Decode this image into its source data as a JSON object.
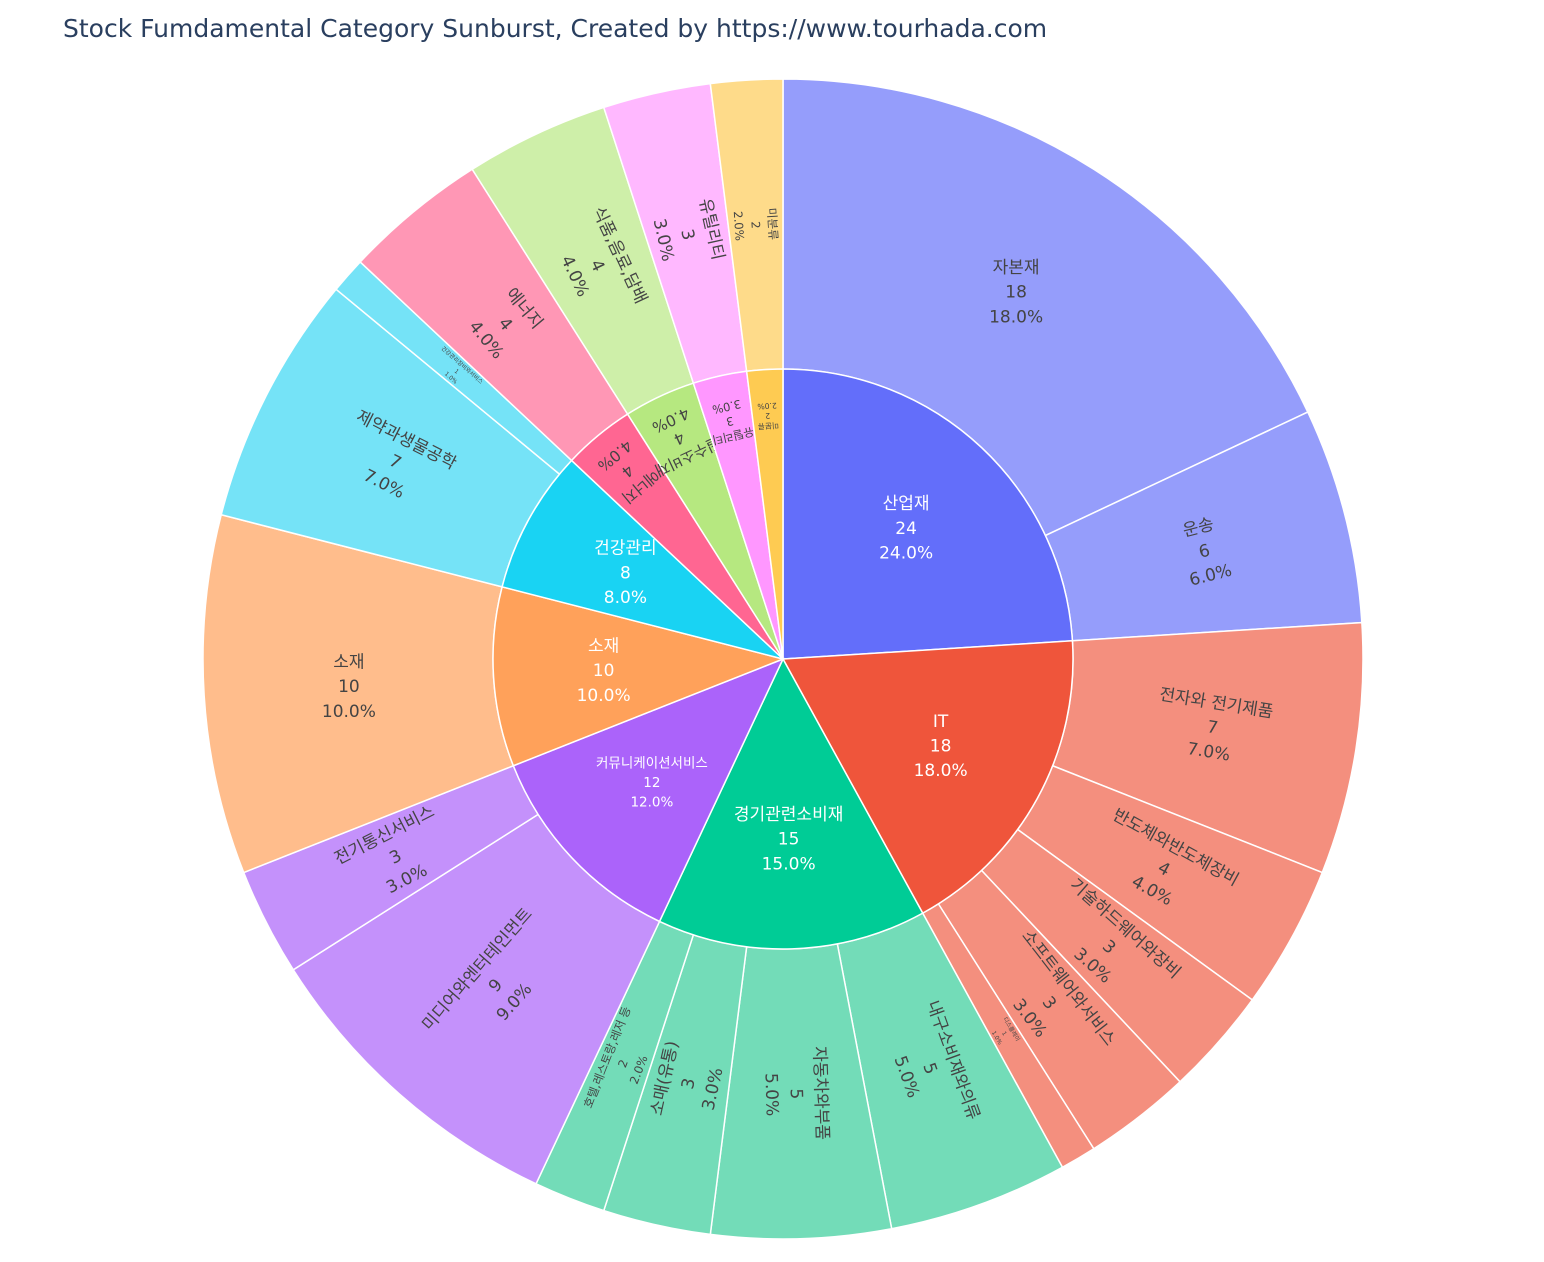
{
  "chart_data": {
    "type": "sunburst",
    "title": "Stock Fumdamental Category Sunburst, Created by https://www.tourhada.com",
    "total": 100,
    "sectors": [
      {
        "name": "산업재",
        "value": 24,
        "percent": "24.0%",
        "color": "#636efa",
        "child_color": "#959dfb",
        "children": [
          {
            "name": "자본재",
            "value": 18,
            "percent": "18.0%"
          },
          {
            "name": "운송",
            "value": 6,
            "percent": "6.0%"
          }
        ]
      },
      {
        "name": "IT",
        "value": 18,
        "percent": "18.0%",
        "color": "#ef553b",
        "child_color": "#f48f7e",
        "children": [
          {
            "name": "전자와 전기제품",
            "value": 7,
            "percent": "7.0%"
          },
          {
            "name": "반도체와반도체장비",
            "value": 4,
            "percent": "4.0%"
          },
          {
            "name": "기술하드웨어와장비",
            "value": 3,
            "percent": "3.0%"
          },
          {
            "name": "소프트웨어와서비스",
            "value": 3,
            "percent": "3.0%"
          },
          {
            "name": "디스플레이",
            "value": 1,
            "percent": "1.0%"
          }
        ]
      },
      {
        "name": "경기관련소비재",
        "value": 15,
        "percent": "15.0%",
        "color": "#00cc96",
        "child_color": "#73dcb8",
        "children": [
          {
            "name": "내구소비재와의류",
            "value": 5,
            "percent": "5.0%"
          },
          {
            "name": "자동차와부품",
            "value": 5,
            "percent": "5.0%"
          },
          {
            "name": "소매(유통)",
            "value": 3,
            "percent": "3.0%"
          },
          {
            "name": "호텔,레스토랑,레저 등",
            "value": 2,
            "percent": "2.0%"
          }
        ]
      },
      {
        "name": "커뮤니케이션서비스",
        "value": 12,
        "percent": "12.0%",
        "color": "#ab63fa",
        "child_color": "#c491fb",
        "children": [
          {
            "name": "미디어와엔터테인먼트",
            "value": 9,
            "percent": "9.0%"
          },
          {
            "name": "전기통신서비스",
            "value": 3,
            "percent": "3.0%"
          }
        ]
      },
      {
        "name": "소재",
        "value": 10,
        "percent": "10.0%",
        "color": "#ffa15a",
        "child_color": "#ffbd8c",
        "children": [
          {
            "name": "소재",
            "value": 10,
            "percent": "10.0%"
          }
        ]
      },
      {
        "name": "건강관리",
        "value": 8,
        "percent": "8.0%",
        "color": "#19d3f3",
        "child_color": "#75e3f7",
        "children": [
          {
            "name": "제약과생물공학",
            "value": 7,
            "percent": "7.0%"
          },
          {
            "name": "건강관리장비와서비스",
            "value": 1,
            "percent": "1.0%"
          }
        ]
      },
      {
        "name": "에너지",
        "value": 4,
        "percent": "4.0%",
        "color": "#ff6692",
        "child_color": "#ff97b5",
        "children": [
          {
            "name": "에너지",
            "value": 4,
            "percent": "4.0%"
          }
        ]
      },
      {
        "name": "필수소비재",
        "value": 4,
        "percent": "4.0%",
        "color": "#b6e880",
        "child_color": "#ceefa9",
        "children": [
          {
            "name": "식품,음료,담배",
            "value": 4,
            "percent": "4.0%"
          }
        ]
      },
      {
        "name": "유틸리티",
        "value": 3,
        "percent": "3.0%",
        "color": "#ff97ff",
        "child_color": "#ffb8ff",
        "children": [
          {
            "name": "유틸리티",
            "value": 3,
            "percent": "3.0%"
          }
        ]
      },
      {
        "name": "미분류",
        "value": 2,
        "percent": "2.0%",
        "color": "#fecb52",
        "child_color": "#fedb8a",
        "children": [
          {
            "name": "미분류",
            "value": 2,
            "percent": "2.0%"
          }
        ]
      }
    ]
  }
}
